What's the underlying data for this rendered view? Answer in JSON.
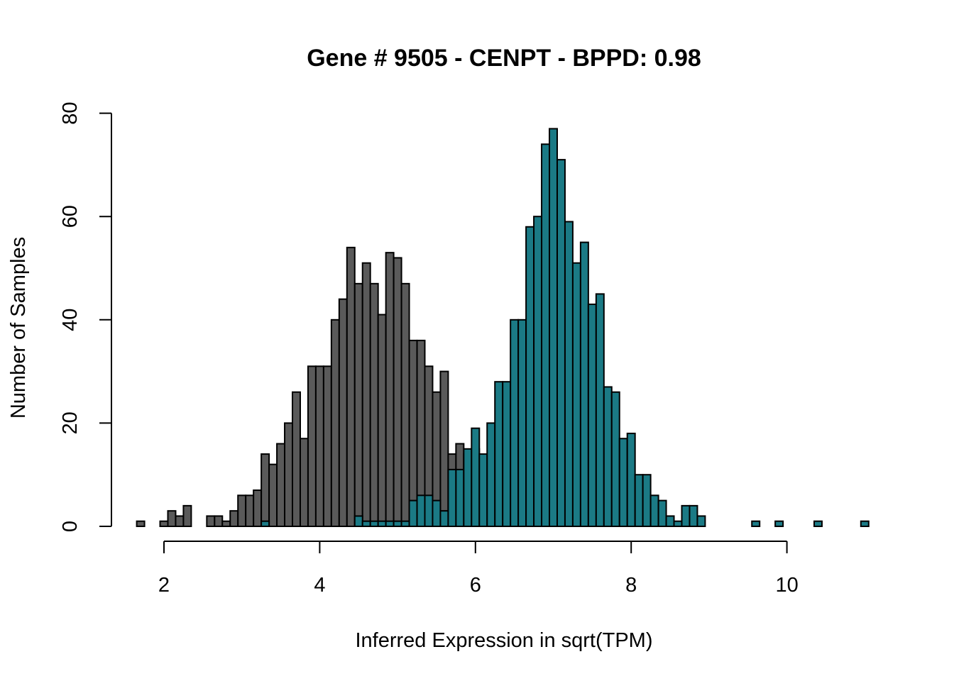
{
  "chart_data": {
    "type": "bar",
    "subtype": "overlaid-histogram",
    "title": "Gene # 9505 - CENPT - BPPD: 0.98",
    "xlabel": "Inferred Expression in sqrt(TPM)",
    "ylabel": "Number of Samples",
    "xlim": [
      1.65,
      11.05
    ],
    "ylim": [
      0,
      80
    ],
    "x_ticks": [
      2,
      4,
      6,
      8,
      10
    ],
    "y_ticks": [
      0,
      20,
      40,
      60,
      80
    ],
    "grid": false,
    "legend": "none",
    "bin_width": 0.1,
    "bin_start": 1.65,
    "colors": {
      "gray": "#5a5a5a",
      "teal": "#1b7a85",
      "stroke": "#000000"
    },
    "series": [
      {
        "color": "#5a5a5a",
        "values": [
          1,
          0,
          0,
          1,
          3,
          2,
          4,
          0,
          0,
          2,
          2,
          1,
          3,
          6,
          6,
          7,
          14,
          12,
          16,
          20,
          26,
          17,
          31,
          31,
          31,
          40,
          44,
          54,
          47,
          51,
          47,
          41,
          53,
          52,
          47,
          36,
          36,
          31,
          26,
          30,
          14,
          16,
          14,
          15,
          13,
          10,
          9,
          11,
          6,
          2,
          0,
          2,
          1,
          0,
          0,
          1,
          0,
          2,
          2,
          0,
          0,
          0,
          1,
          0,
          0,
          0,
          0,
          0,
          0,
          0,
          0,
          0,
          0,
          0,
          0,
          0,
          0,
          0,
          0,
          0,
          0,
          0,
          0,
          0,
          0,
          0,
          0,
          0,
          0,
          0,
          0,
          0,
          0,
          0
        ]
      },
      {
        "color": "#1b7a85",
        "values": [
          0,
          0,
          0,
          0,
          0,
          0,
          0,
          0,
          0,
          0,
          0,
          0,
          0,
          0,
          0,
          0,
          1,
          0,
          0,
          0,
          0,
          0,
          0,
          0,
          0,
          0,
          0,
          0,
          2,
          1,
          1,
          1,
          1,
          1,
          1,
          5,
          6,
          6,
          5,
          3,
          11,
          11,
          15,
          19,
          14,
          20,
          28,
          28,
          40,
          40,
          58,
          60,
          74,
          77,
          71,
          59,
          51,
          55,
          43,
          45,
          27,
          26,
          17,
          18,
          10,
          10,
          6,
          5,
          2,
          1,
          4,
          4,
          2,
          0,
          0,
          0,
          0,
          0,
          0,
          1,
          0,
          0,
          1,
          0,
          0,
          0,
          0,
          1,
          0,
          0,
          0,
          0,
          0,
          1
        ]
      }
    ]
  }
}
